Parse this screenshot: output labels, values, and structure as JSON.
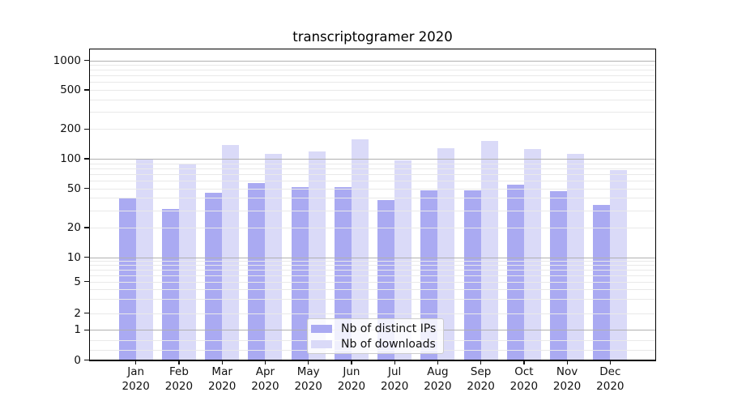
{
  "chart_data": {
    "type": "bar",
    "title": "transcriptogramer 2020",
    "categories": [
      "Jan",
      "Feb",
      "Mar",
      "Apr",
      "May",
      "Jun",
      "Jul",
      "Aug",
      "Sep",
      "Oct",
      "Nov",
      "Dec"
    ],
    "x_year_label": "2020",
    "series": [
      {
        "name": "Nb of distinct IPs",
        "color": "#aaaaf2",
        "values": [
          40,
          31,
          45,
          57,
          52,
          52,
          38,
          48,
          48,
          55,
          47,
          34
        ]
      },
      {
        "name": "Nb of downloads",
        "color": "#dadaf8",
        "values": [
          100,
          90,
          137,
          113,
          118,
          158,
          97,
          127,
          153,
          126,
          113,
          76
        ]
      }
    ],
    "xlabel": "",
    "ylabel": "",
    "yscale": "symlog",
    "ylim": [
      0,
      1000
    ],
    "yticks": [
      0,
      1,
      2,
      5,
      10,
      20,
      50,
      100,
      200,
      500,
      1000
    ],
    "grid": true,
    "grid_position": "above-bars",
    "legend_position": "lower center"
  }
}
